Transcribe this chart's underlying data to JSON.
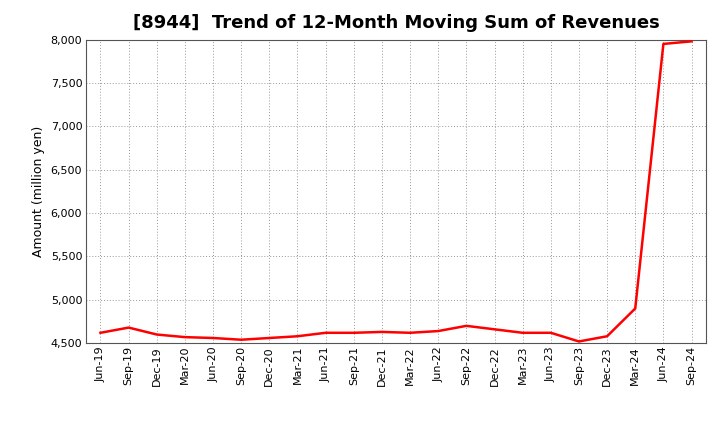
{
  "title": "[8944]  Trend of 12-Month Moving Sum of Revenues",
  "ylabel": "Amount (million yen)",
  "line_color": "#ff0000",
  "background_color": "#ffffff",
  "plot_bg_color": "#ffffff",
  "grid_color": "#999999",
  "ylim": [
    4500,
    8000
  ],
  "yticks": [
    4500,
    5000,
    5500,
    6000,
    6500,
    7000,
    7500,
    8000
  ],
  "labels": [
    "Jun-19",
    "Sep-19",
    "Dec-19",
    "Mar-20",
    "Jun-20",
    "Sep-20",
    "Dec-20",
    "Mar-21",
    "Jun-21",
    "Sep-21",
    "Dec-21",
    "Mar-22",
    "Jun-22",
    "Sep-22",
    "Dec-22",
    "Mar-23",
    "Jun-23",
    "Sep-23",
    "Dec-23",
    "Mar-24",
    "Jun-24",
    "Sep-24"
  ],
  "values": [
    4620,
    4680,
    4600,
    4570,
    4560,
    4540,
    4560,
    4580,
    4620,
    4620,
    4630,
    4620,
    4640,
    4700,
    4660,
    4620,
    4620,
    4520,
    4580,
    4900,
    7950,
    7980
  ],
  "title_fontsize": 13,
  "tick_fontsize": 8,
  "ylabel_fontsize": 9,
  "line_width": 1.8
}
